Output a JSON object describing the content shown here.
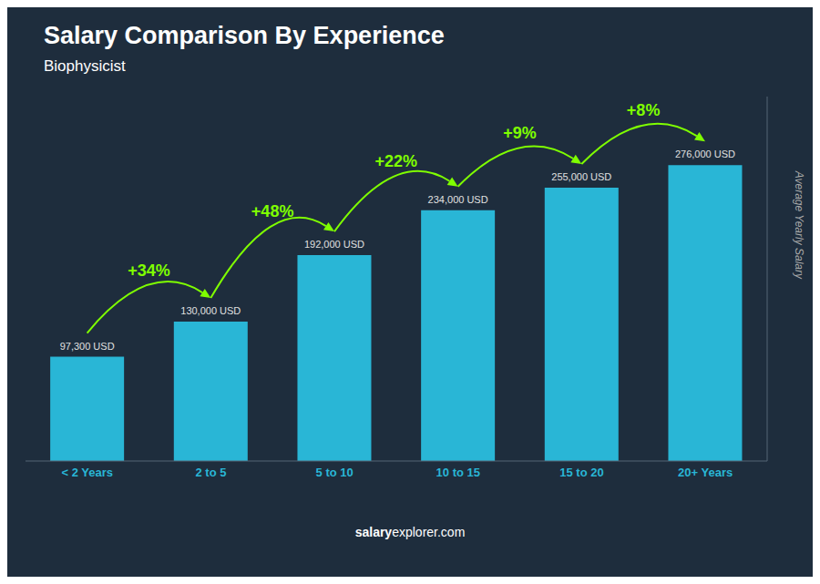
{
  "chart_data": {
    "type": "bar",
    "title": "Salary Comparison By Experience",
    "subtitle": "Biophysicist",
    "ylabel": "Average Yearly Salary",
    "footer": [
      "salary",
      "explorer.com"
    ],
    "categories": [
      "< 2 Years",
      "2 to 5",
      "5 to 10",
      "10 to 15",
      "15 to 20",
      "20+ Years"
    ],
    "values": [
      97300,
      130000,
      192000,
      234000,
      255000,
      276000
    ],
    "value_labels": [
      "97,300 USD",
      "130,000 USD",
      "192,000 USD",
      "234,000 USD",
      "255,000 USD",
      "276,000 USD"
    ],
    "data_labels": true,
    "annotations": [
      "+34%",
      "+48%",
      "+22%",
      "+9%",
      "+8%"
    ],
    "color": "#29b6d6",
    "ylim": [
      0,
      340000
    ],
    "tick_labels": "x",
    "grid": false
  }
}
